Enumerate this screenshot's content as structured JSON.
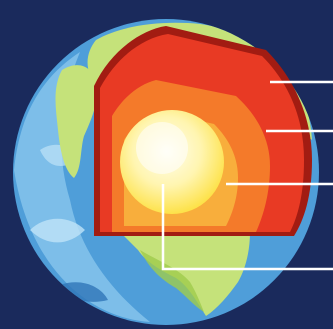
{
  "diagram": {
    "subject": "earth-interior-cutaway",
    "labels": [],
    "pointer_lines": [
      {
        "target": "crust"
      },
      {
        "target": "mantle"
      },
      {
        "target": "outer-core"
      },
      {
        "target": "inner-core"
      }
    ]
  },
  "colors": {
    "background": "#1a2a5c",
    "ocean_light": "#8cc8ee",
    "ocean_mid": "#4f9ed9",
    "ocean_dark": "#2f75b8",
    "land": "#c5e27a",
    "land_dark": "#9fcc4c",
    "crust": "#e83a24",
    "crust_edge": "#a21c12",
    "mantle": "#f47a2a",
    "outer_core": "#f8ae3c",
    "core_glow": "#fde24a",
    "inner_core": "#fff7c4",
    "pointer": "#ffffff"
  }
}
